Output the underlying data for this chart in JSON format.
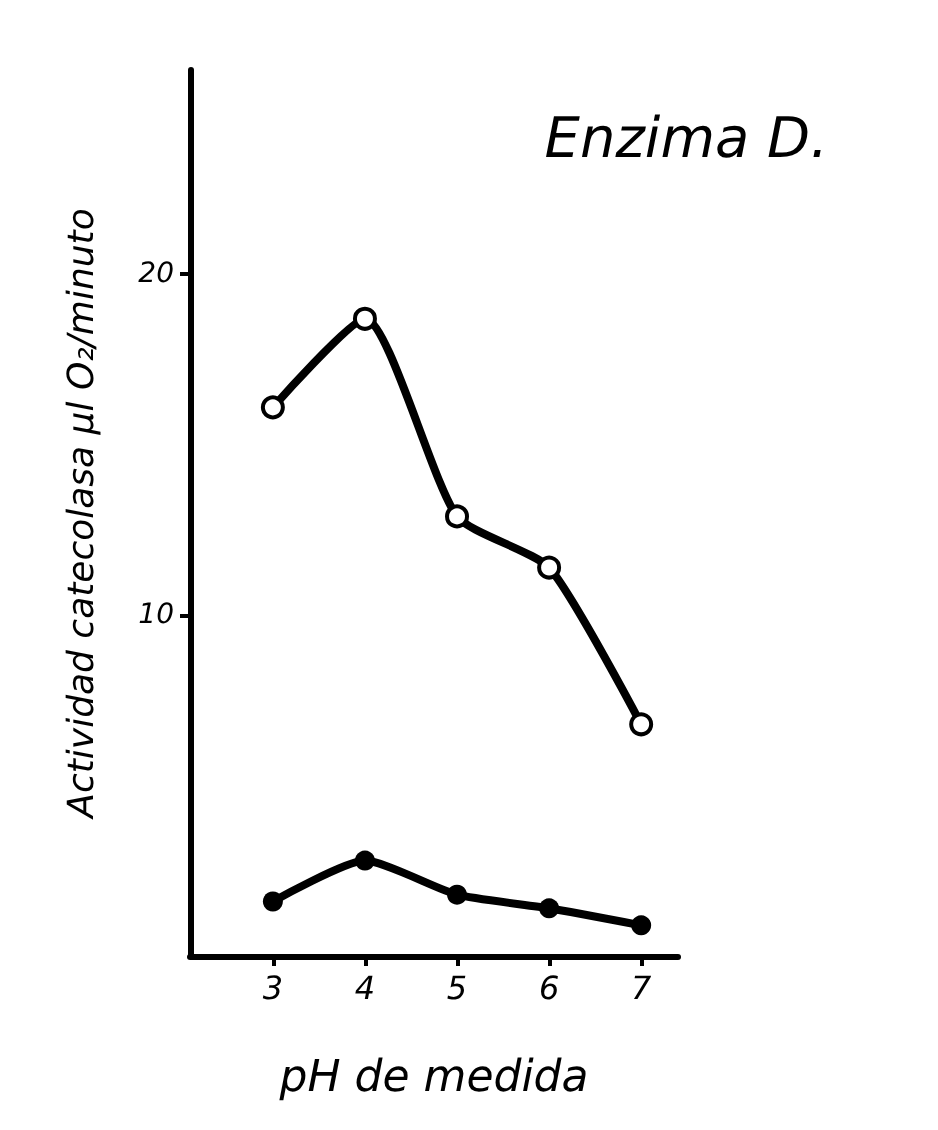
{
  "chart_data": {
    "type": "line",
    "title": "Enzima D.",
    "xlabel": "pH de medida",
    "ylabel": "Actividad catecolasa µl O₂/minuto",
    "x": [
      3,
      4,
      5,
      6,
      7
    ],
    "series": [
      {
        "color": "#000000",
        "values": [
          16.1,
          18.7,
          12.9,
          11.4,
          6.8
        ]
      },
      {
        "color": "#000000",
        "values": [
          1.6,
          2.8,
          1.8,
          1.4,
          0.9
        ]
      }
    ],
    "xlim": [
      2.1,
      7.4
    ],
    "xticks": [
      3,
      4,
      5,
      6,
      7
    ],
    "ylim": [
      0,
      26
    ],
    "yticks": [
      10,
      20
    ],
    "grid": false,
    "marker": "circle",
    "line_style": "solid"
  }
}
